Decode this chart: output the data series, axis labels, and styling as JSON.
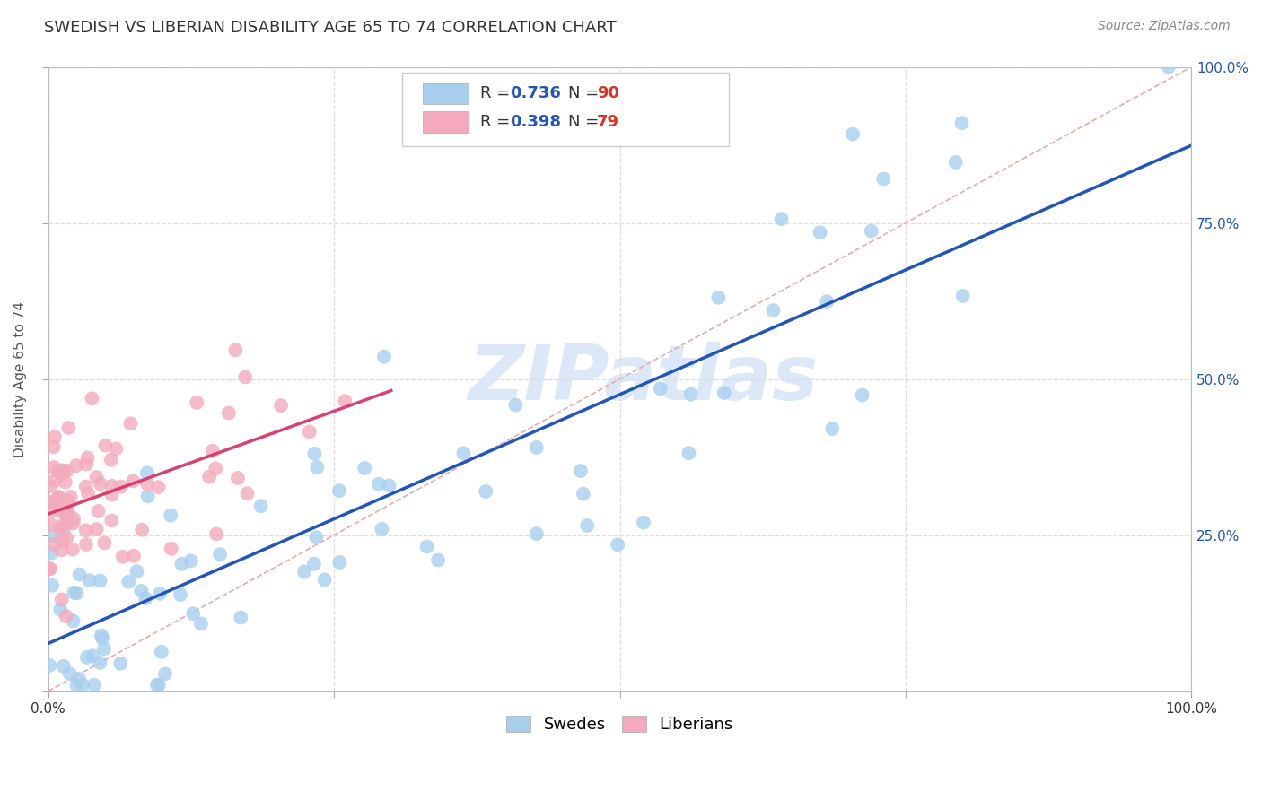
{
  "title": "SWEDISH VS LIBERIAN DISABILITY AGE 65 TO 74 CORRELATION CHART",
  "source": "Source: ZipAtlas.com",
  "ylabel": "Disability Age 65 to 74",
  "xlim": [
    0,
    1.0
  ],
  "ylim": [
    0,
    1.0
  ],
  "xticks": [
    0.0,
    0.25,
    0.5,
    0.75,
    1.0
  ],
  "yticks": [
    0.0,
    0.25,
    0.5,
    0.75,
    1.0
  ],
  "xticklabels_bottom": [
    "0.0%",
    "",
    "",
    "",
    "100.0%"
  ],
  "yticklabels_right": [
    "",
    "25.0%",
    "50.0%",
    "75.0%",
    "100.0%"
  ],
  "swedes_color": "#A8CFEE",
  "liberians_color": "#F4AABC",
  "swedes_line_color": "#2255BB",
  "liberians_line_color": "#D94070",
  "diagonal_color": "#E8AAAA",
  "diagonal_linestyle": "--",
  "watermark_text": "ZIPatlas",
  "watermark_color": "#DCE8F8",
  "legend_R_swedes": "R = 0.736",
  "legend_N_swedes": "N = 90",
  "legend_R_liberians": "R = 0.398",
  "legend_N_liberians": "N = 79",
  "legend_text_color_label": "#333333",
  "legend_text_color_val": "#2255BB",
  "legend_text_color_N": "#DD3322",
  "background_color": "#FFFFFF",
  "grid_color": "#DDDDDD",
  "title_color": "#333333",
  "axis_label_color": "#555555",
  "tick_label_color_right": "#2255BB",
  "title_fontsize": 13,
  "source_fontsize": 10,
  "ylabel_fontsize": 11,
  "tick_fontsize": 11,
  "legend_fontsize": 13
}
